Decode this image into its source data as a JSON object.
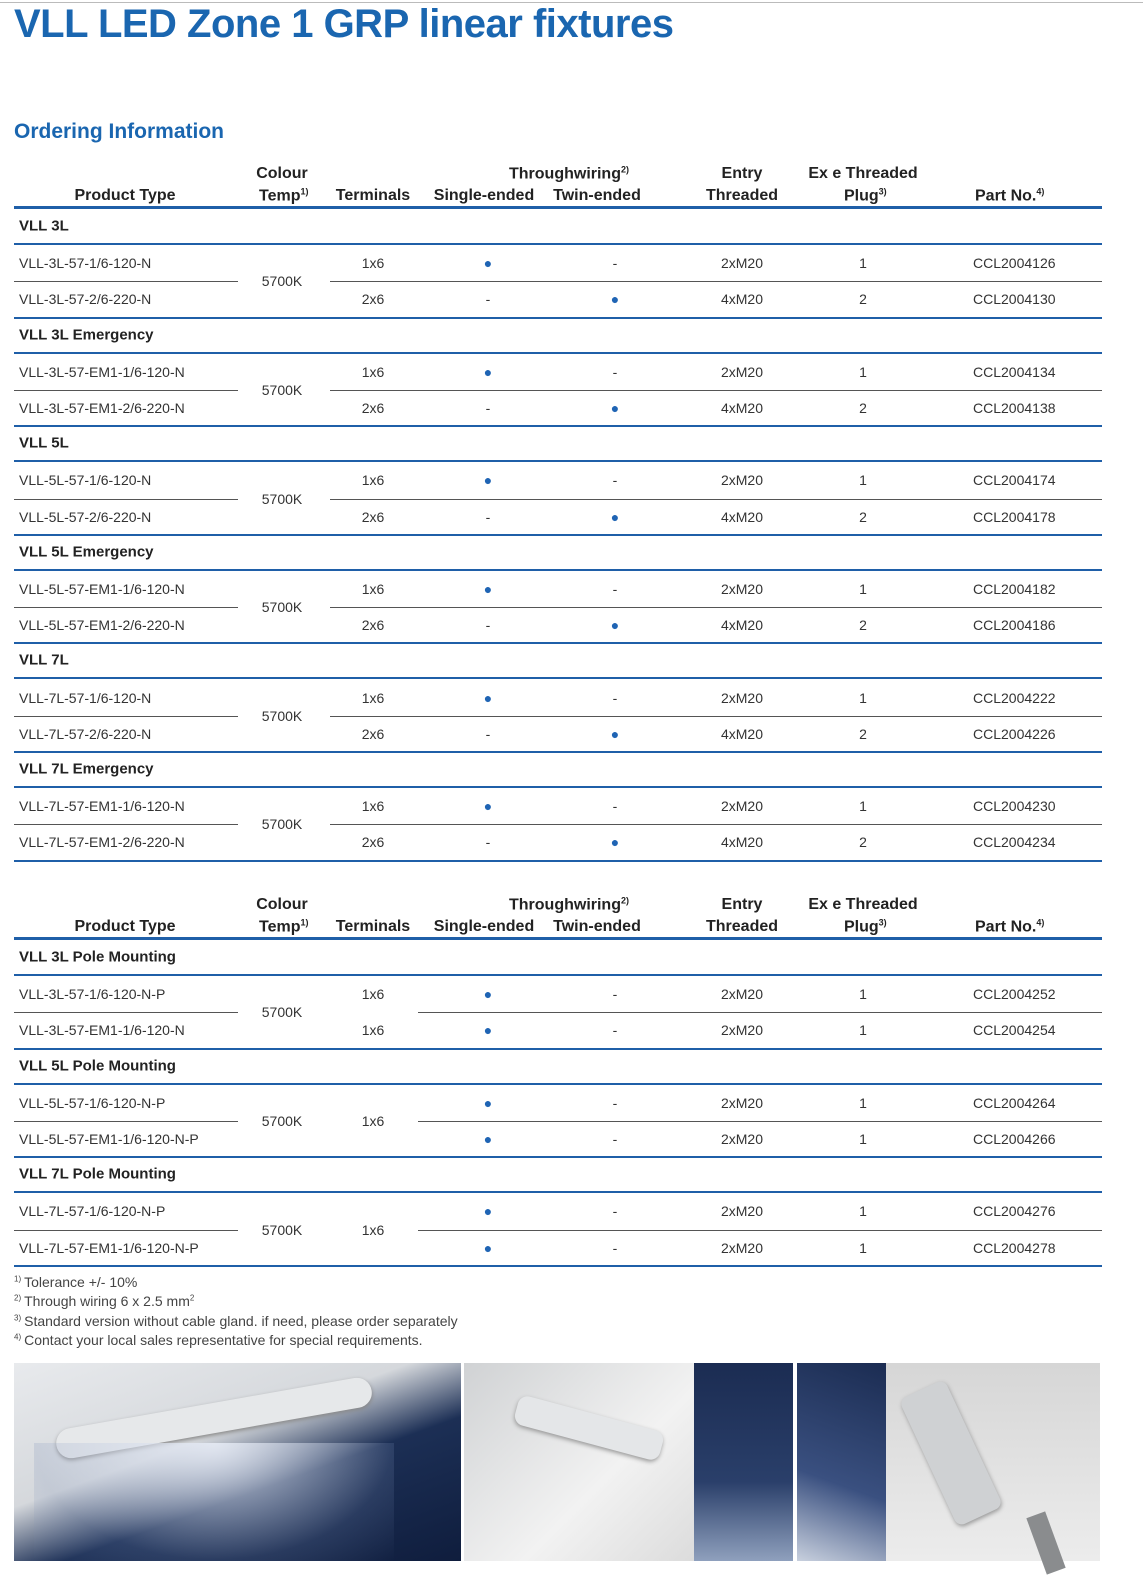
{
  "title": "VLL LED Zone 1 GRP linear fixtures",
  "section": "Ordering Information",
  "tables": [
    {
      "header": {
        "product_type": "Product Type",
        "colour": "Colour",
        "temp": "Temp",
        "temp_note": "1)",
        "terminals": "Terminals",
        "throughwiring": "Throughwiring",
        "throughwiring_note": "2)",
        "single": "Single-ended",
        "twin": "Twin-ended",
        "entry": "Entry",
        "threaded": "Threaded",
        "plug_line1": "Ex e Threaded",
        "plug_line2": "Plug",
        "plug_note": "3)",
        "part": "Part No.",
        "part_note": "4)"
      },
      "groups": [
        {
          "name": "VLL 3L",
          "colour_temp": "5700K",
          "rows": [
            [
              "VLL-3L-57-1/6-120-N",
              "1x6",
              "●",
              "-",
              "2xM20",
              "1",
              "CCL2004126"
            ],
            [
              "VLL-3L-57-2/6-220-N",
              "2x6",
              "-",
              "●",
              "4xM20",
              "2",
              "CCL2004130"
            ]
          ]
        },
        {
          "name": "VLL 3L Emergency",
          "colour_temp": "5700K",
          "rows": [
            [
              "VLL-3L-57-EM1-1/6-120-N",
              "1x6",
              "●",
              "-",
              "2xM20",
              "1",
              "CCL2004134"
            ],
            [
              "VLL-3L-57-EM1-2/6-220-N",
              "2x6",
              "-",
              "●",
              "4xM20",
              "2",
              "CCL2004138"
            ]
          ]
        },
        {
          "name": "VLL 5L",
          "colour_temp": "5700K",
          "rows": [
            [
              "VLL-5L-57-1/6-120-N",
              "1x6",
              "●",
              "-",
              "2xM20",
              "1",
              "CCL2004174"
            ],
            [
              "VLL-5L-57-2/6-220-N",
              "2x6",
              "-",
              "●",
              "4xM20",
              "2",
              "CCL2004178"
            ]
          ]
        },
        {
          "name": "VLL 5L Emergency",
          "colour_temp": "5700K",
          "rows": [
            [
              "VLL-5L-57-EM1-1/6-120-N",
              "1x6",
              "●",
              "-",
              "2xM20",
              "1",
              "CCL2004182"
            ],
            [
              "VLL-5L-57-EM1-2/6-220-N",
              "2x6",
              "-",
              "●",
              "4xM20",
              "2",
              "CCL2004186"
            ]
          ]
        },
        {
          "name": "VLL 7L",
          "colour_temp": "5700K",
          "rows": [
            [
              "VLL-7L-57-1/6-120-N",
              "1x6",
              "●",
              "-",
              "2xM20",
              "1",
              "CCL2004222"
            ],
            [
              "VLL-7L-57-2/6-220-N",
              "2x6",
              "-",
              "●",
              "4xM20",
              "2",
              "CCL2004226"
            ]
          ]
        },
        {
          "name": "VLL 7L Emergency",
          "colour_temp": "5700K",
          "rows": [
            [
              "VLL-7L-57-EM1-1/6-120-N",
              "1x6",
              "●",
              "-",
              "2xM20",
              "1",
              "CCL2004230"
            ],
            [
              "VLL-7L-57-EM1-2/6-220-N",
              "2x6",
              "-",
              "●",
              "4xM20",
              "2",
              "CCL2004234"
            ]
          ]
        }
      ]
    },
    {
      "header": {
        "product_type": "Product Type",
        "colour": "Colour",
        "temp": "Temp",
        "temp_note": "1)",
        "terminals": "Terminals",
        "throughwiring": "Throughwiring",
        "throughwiring_note": "2)",
        "single": "Single-ended",
        "twin": "Twin-ended",
        "entry": "Entry",
        "threaded": "Threaded",
        "plug_line1": "Ex e Threaded",
        "plug_line2": "Plug",
        "plug_note": "3)",
        "part": "Part No.",
        "part_note": "4)"
      },
      "groups": [
        {
          "name": "VLL 3L Pole Mounting",
          "colour_temp": "5700K",
          "rows": [
            [
              "VLL-3L-57-1/6-120-N-P",
              "1x6",
              "●",
              "-",
              "2xM20",
              "1",
              "CCL2004252"
            ],
            [
              "VLL-3L-57-EM1-1/6-120-N",
              "1x6",
              "●",
              "-",
              "2xM20",
              "1",
              "CCL2004254"
            ]
          ]
        },
        {
          "name": "VLL 5L Pole Mounting",
          "colour_temp": "5700K",
          "terminals": "1x6",
          "rows": [
            [
              "VLL-5L-57-1/6-120-N-P",
              "●",
              "-",
              "2xM20",
              "1",
              "CCL2004264"
            ],
            [
              "VLL-5L-57-EM1-1/6-120-N-P",
              "●",
              "-",
              "2xM20",
              "1",
              "CCL2004266"
            ]
          ]
        },
        {
          "name": "VLL 7L Pole Mounting",
          "colour_temp": "5700K",
          "terminals": "1x6",
          "rows": [
            [
              "VLL-7L-57-1/6-120-N-P",
              "●",
              "-",
              "2xM20",
              "1",
              "CCL2004276"
            ],
            [
              "VLL-7L-57-EM1-1/6-120-N-P",
              "●",
              "-",
              "2xM20",
              "1",
              "CCL2004278"
            ]
          ]
        }
      ]
    }
  ],
  "footnotes": [
    {
      "mark": "1)",
      "text": "Tolerance +/- 10%"
    },
    {
      "mark": "2)",
      "text": "Through wiring 6 x 2.5 mm",
      "sup": "2"
    },
    {
      "mark": "3)",
      "text": "Standard version without cable gland. if need, please order separately"
    },
    {
      "mark": "4)",
      "text": "Contact your local sales representative for special requirements."
    }
  ]
}
